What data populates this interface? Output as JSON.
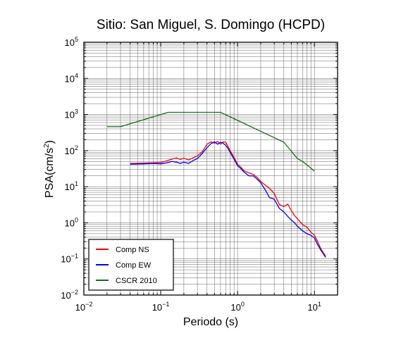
{
  "chart_data": {
    "type": "line",
    "title": "Sitio: San Miguel, S. Domingo (HCPD)",
    "xlabel": "Periodo (s)",
    "ylabel_base": "PSA(cm/s",
    "ylabel_exp": "2",
    "ylabel_close": ")",
    "x_scale": "log",
    "y_scale": "log",
    "xlim": [
      0.01,
      20
    ],
    "ylim": [
      0.01,
      100000
    ],
    "grid": true,
    "legend_placement": "bottom-left",
    "x_ticks": [
      {
        "value": 0.01,
        "base": "10",
        "exp": "−2"
      },
      {
        "value": 0.1,
        "base": "10",
        "exp": "−1"
      },
      {
        "value": 1,
        "base": "10",
        "exp": "0"
      },
      {
        "value": 10,
        "base": "10",
        "exp": "1"
      }
    ],
    "y_ticks": [
      {
        "value": 0.01,
        "base": "10",
        "exp": "−2"
      },
      {
        "value": 0.1,
        "base": "10",
        "exp": "−1"
      },
      {
        "value": 1,
        "base": "10",
        "exp": "0"
      },
      {
        "value": 10,
        "base": "10",
        "exp": "1"
      },
      {
        "value": 100,
        "base": "10",
        "exp": "2"
      },
      {
        "value": 1000,
        "base": "10",
        "exp": "3"
      },
      {
        "value": 10000,
        "base": "10",
        "exp": "4"
      },
      {
        "value": 100000,
        "base": "10",
        "exp": "5"
      }
    ],
    "series": [
      {
        "name": "Comp NS",
        "color": "#ff0000",
        "x": [
          0.04,
          0.06,
          0.08,
          0.1,
          0.12,
          0.14,
          0.16,
          0.18,
          0.2,
          0.23,
          0.26,
          0.3,
          0.35,
          0.4,
          0.45,
          0.5,
          0.55,
          0.6,
          0.65,
          0.7,
          0.75,
          0.8,
          0.9,
          1.0,
          1.1,
          1.2,
          1.4,
          1.6,
          1.8,
          2.0,
          2.3,
          2.6,
          3.0,
          3.5,
          4.0,
          4.5,
          5.0,
          5.5,
          6.0,
          7.0,
          8.0,
          9.0,
          10.0,
          11.0,
          12.0,
          13.0,
          14.0
        ],
        "y": [
          44,
          45,
          46,
          47,
          52,
          58,
          63,
          57,
          62,
          55,
          62,
          72,
          95,
          150,
          175,
          160,
          180,
          150,
          175,
          170,
          130,
          100,
          65,
          42,
          35,
          28,
          24,
          22,
          18,
          14,
          11,
          9,
          6.5,
          3.2,
          2.8,
          3.3,
          2.2,
          1.6,
          1.3,
          0.9,
          0.75,
          0.55,
          0.45,
          0.3,
          0.2,
          0.15,
          0.12
        ]
      },
      {
        "name": "Comp EW",
        "color": "#0000ff",
        "x": [
          0.04,
          0.06,
          0.08,
          0.1,
          0.12,
          0.14,
          0.16,
          0.18,
          0.2,
          0.23,
          0.26,
          0.3,
          0.35,
          0.4,
          0.45,
          0.5,
          0.55,
          0.6,
          0.65,
          0.7,
          0.75,
          0.8,
          0.9,
          1.0,
          1.1,
          1.2,
          1.4,
          1.6,
          1.8,
          2.0,
          2.3,
          2.6,
          3.0,
          3.5,
          4.0,
          4.5,
          5.0,
          5.5,
          6.0,
          7.0,
          8.0,
          9.0,
          10.0,
          11.0,
          12.0,
          13.0,
          14.0
        ],
        "y": [
          42,
          43,
          44,
          43,
          46,
          50,
          48,
          44,
          48,
          44,
          52,
          60,
          85,
          120,
          155,
          175,
          150,
          170,
          160,
          140,
          115,
          90,
          58,
          38,
          32,
          26,
          20,
          20,
          16,
          13,
          8,
          5,
          4.5,
          2.5,
          2.0,
          1.5,
          1.2,
          1.0,
          0.8,
          0.6,
          0.5,
          0.45,
          0.38,
          0.25,
          0.18,
          0.14,
          0.11
        ]
      },
      {
        "name": "CSCR 2010",
        "color": "#1a6b1a",
        "x": [
          0.02,
          0.03,
          0.125,
          0.6,
          4.0,
          6.0,
          7.0,
          8.0,
          10.0
        ],
        "y": [
          460,
          460,
          1150,
          1150,
          170,
          60,
          50,
          40,
          27
        ]
      }
    ]
  }
}
